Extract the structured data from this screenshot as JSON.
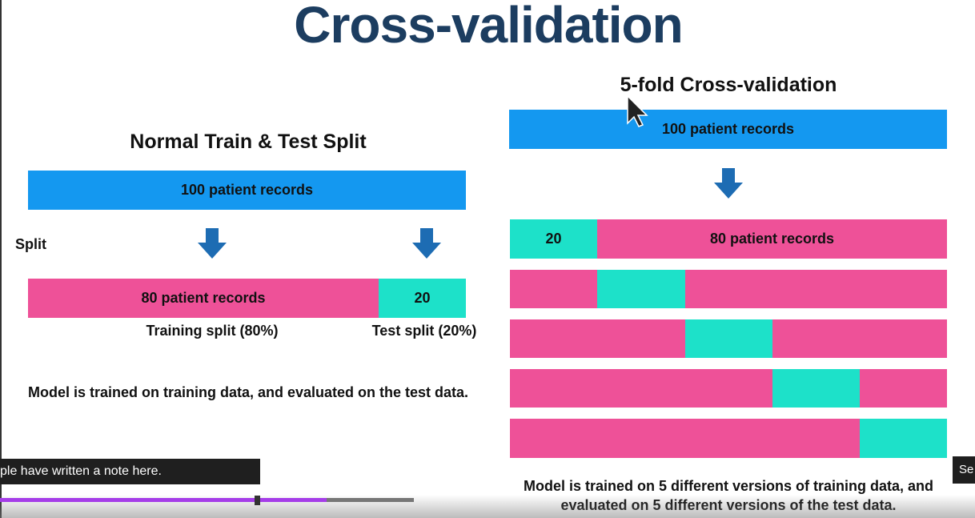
{
  "slide": {
    "title": "Cross-validation",
    "left": {
      "heading": "Normal Train & Test Split",
      "total": "100 patient records",
      "split_label": "Split",
      "train": "80 patient records",
      "test": "20",
      "train_caption": "Training split (80%)",
      "test_caption": "Test split (20%)",
      "note": "Model is trained on training data, and evaluated on the test data."
    },
    "right": {
      "heading": "5-fold Cross-validation",
      "total": "100 patient records",
      "test": "20",
      "train": "80 patient records",
      "note": "Model is trained on 5 different versions of training data, and evaluated on 5 different versions of the test data."
    }
  },
  "overlay": {
    "caption": "ple have written a note here.",
    "button": "Se"
  }
}
